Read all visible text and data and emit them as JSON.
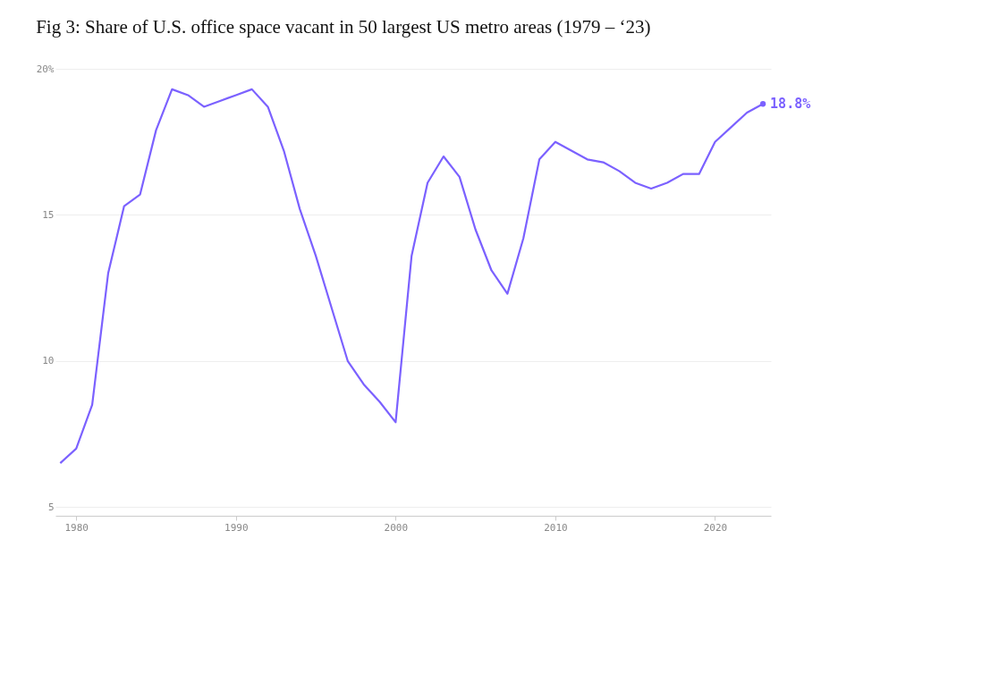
{
  "chart_data": {
    "type": "line",
    "title": "Fig 3: Share of U.S. office space vacant in 50 largest US metro areas (1979 – ‘23)",
    "x": [
      1979,
      1980,
      1981,
      1982,
      1983,
      1984,
      1985,
      1986,
      1987,
      1988,
      1989,
      1990,
      1991,
      1992,
      1993,
      1994,
      1995,
      1996,
      1997,
      1998,
      1999,
      2000,
      2001,
      2002,
      2003,
      2004,
      2005,
      2006,
      2007,
      2008,
      2009,
      2010,
      2011,
      2012,
      2013,
      2014,
      2015,
      2016,
      2017,
      2018,
      2019,
      2020,
      2021,
      2022,
      2023
    ],
    "series": [
      {
        "color": "#7b61ff",
        "values": [
          6.5,
          7.0,
          8.5,
          13.0,
          15.3,
          15.7,
          17.9,
          19.3,
          19.1,
          18.7,
          18.9,
          19.1,
          19.3,
          18.7,
          17.2,
          15.2,
          13.6,
          11.8,
          10.0,
          9.2,
          8.6,
          7.9,
          13.6,
          16.1,
          17.0,
          16.3,
          14.5,
          13.1,
          12.3,
          14.2,
          16.9,
          17.5,
          17.2,
          16.9,
          16.8,
          16.5,
          16.1,
          15.9,
          16.1,
          16.4,
          16.4,
          17.5,
          18.0,
          18.5,
          18.8
        ]
      }
    ],
    "xlim": [
      1978.7,
      2023.5
    ],
    "xticks": [
      1980,
      1990,
      2000,
      2010,
      2020
    ],
    "ylim": [
      4.7,
      20
    ],
    "yticks": [
      5,
      10,
      15,
      {
        "value": 20,
        "label": "20%"
      }
    ],
    "grid": "y",
    "marker": "none",
    "line_style": "solid",
    "annotations": [
      {
        "text": "18.8%",
        "x": 2023,
        "y": 18.8
      }
    ]
  }
}
